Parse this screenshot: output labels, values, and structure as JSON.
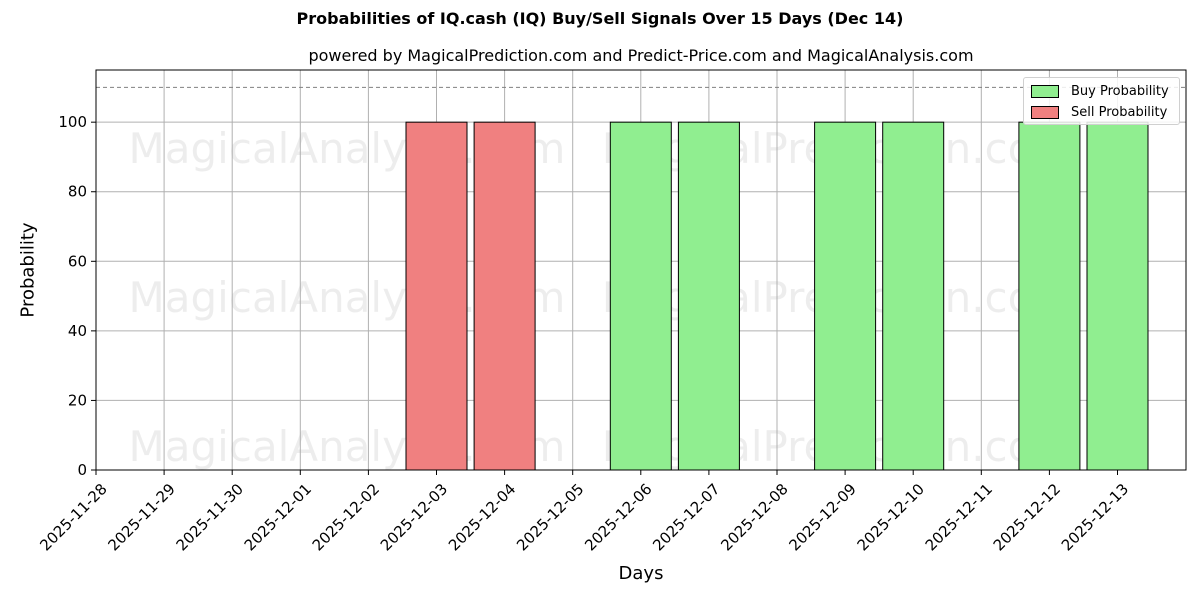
{
  "header": {
    "title": "Probabilities of IQ.cash (IQ) Buy/Sell Signals Over 15 Days (Dec 14)",
    "subtitle": "powered by MagicalPrediction.com and Predict-Price.com and MagicalAnalysis.com"
  },
  "axes": {
    "xlabel": "Days",
    "ylabel": "Probability"
  },
  "legend": {
    "buy_label": "Buy Probability",
    "sell_label": "Sell Probability"
  },
  "watermarks": [
    "MagicalAnalysis.com",
    "MagicalPrediction.com"
  ],
  "colors": {
    "buy": "#90ee90",
    "sell": "#f08080",
    "threshold_line": "#808080",
    "grid": "#b0b0b0"
  },
  "chart_data": {
    "type": "bar",
    "title": "Probabilities of IQ.cash (IQ) Buy/Sell Signals Over 15 Days (Dec 14)",
    "subtitle": "powered by MagicalPrediction.com and Predict-Price.com and MagicalAnalysis.com",
    "xlabel": "Days",
    "ylabel": "Probability",
    "categories": [
      "2025-11-28",
      "2025-11-29",
      "2025-11-30",
      "2025-12-01",
      "2025-12-02",
      "2025-12-03",
      "2025-12-04",
      "2025-12-05",
      "2025-12-06",
      "2025-12-07",
      "2025-12-08",
      "2025-12-09",
      "2025-12-10",
      "2025-12-11",
      "2025-12-12",
      "2025-12-13"
    ],
    "series": [
      {
        "name": "Buy Probability",
        "color": "#90ee90",
        "values": [
          0,
          0,
          0,
          0,
          0,
          0,
          0,
          0,
          100,
          100,
          0,
          100,
          100,
          0,
          100,
          100
        ]
      },
      {
        "name": "Sell Probability",
        "color": "#f08080",
        "values": [
          0,
          0,
          0,
          0,
          0,
          100,
          100,
          0,
          0,
          0,
          0,
          0,
          0,
          0,
          0,
          0
        ]
      }
    ],
    "yticks": [
      0,
      20,
      40,
      60,
      80,
      100
    ],
    "ylim": [
      0,
      115
    ],
    "threshold_line": {
      "y": 110,
      "style": "dashed"
    },
    "grid": true,
    "legend_position": "upper right"
  }
}
